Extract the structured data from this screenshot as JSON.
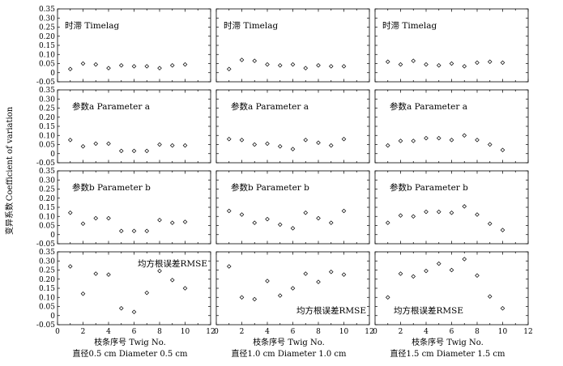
{
  "y_axis_label_cn": "变异系数",
  "y_axis_label_en": "Coefficient of variation",
  "chart_data": {
    "type": "scatter",
    "marker": "diamond",
    "xlim": [
      0,
      12
    ],
    "ylim": [
      -0.05,
      0.35
    ],
    "xticks": [
      "0",
      "2",
      "4",
      "6",
      "8",
      "10",
      "12"
    ],
    "yticks": [
      "-0.05",
      "0",
      "0.05",
      "0.10",
      "0.15",
      "0.20",
      "0.25",
      "0.30",
      "0.35"
    ],
    "rows": [
      {
        "title": "时滞 Timelag",
        "title_pos": [
          "top-left",
          "top-left",
          "top-left"
        ]
      },
      {
        "title": "参数a Parameter a",
        "title_pos": [
          "upper-left",
          "upper-left",
          "upper-left"
        ]
      },
      {
        "title": "参数b Parameter b",
        "title_pos": [
          "upper-left",
          "upper-left",
          "upper-left"
        ]
      },
      {
        "title": "均方根误差RMSE",
        "title_pos": [
          "top-right",
          "bottom-right",
          "bottom-left"
        ]
      }
    ],
    "columns": [
      {
        "xlabel": "枝条序号  Twig No.",
        "sublabel": "直径0.5 cm  Diameter 0.5 cm",
        "series": [
          {
            "x": [
              1,
              2,
              3,
              4,
              5,
              6,
              7,
              8,
              9,
              10
            ],
            "y": [
              0.02,
              0.05,
              0.045,
              0.025,
              0.04,
              0.035,
              0.035,
              0.025,
              0.04,
              0.045
            ]
          },
          {
            "x": [
              1,
              2,
              3,
              4,
              5,
              6,
              7,
              8,
              9,
              10
            ],
            "y": [
              0.075,
              0.04,
              0.055,
              0.055,
              0.015,
              0.015,
              0.015,
              0.05,
              0.045,
              0.045
            ]
          },
          {
            "x": [
              1,
              2,
              3,
              4,
              5,
              6,
              7,
              8,
              9,
              10
            ],
            "y": [
              0.12,
              0.06,
              0.09,
              0.09,
              0.02,
              0.02,
              0.02,
              0.08,
              0.065,
              0.07
            ]
          },
          {
            "x": [
              1,
              2,
              3,
              4,
              5,
              6,
              7,
              8,
              9,
              10
            ],
            "y": [
              0.27,
              0.12,
              0.23,
              0.225,
              0.04,
              0.02,
              0.125,
              0.245,
              0.195,
              0.15
            ]
          }
        ]
      },
      {
        "xlabel": "枝条序号  Twig No.",
        "sublabel": "直径1.0 cm  Diameter 1.0 cm",
        "series": [
          {
            "x": [
              1,
              2,
              3,
              4,
              5,
              6,
              7,
              8,
              9,
              10
            ],
            "y": [
              0.02,
              0.07,
              0.065,
              0.045,
              0.04,
              0.045,
              0.025,
              0.04,
              0.035,
              0.035
            ]
          },
          {
            "x": [
              1,
              2,
              3,
              4,
              5,
              6,
              7,
              8,
              9,
              10
            ],
            "y": [
              0.08,
              0.075,
              0.05,
              0.055,
              0.04,
              0.025,
              0.075,
              0.06,
              0.045,
              0.08
            ]
          },
          {
            "x": [
              1,
              2,
              3,
              4,
              5,
              6,
              7,
              8,
              9,
              10
            ],
            "y": [
              0.13,
              0.11,
              0.065,
              0.085,
              0.055,
              0.035,
              0.12,
              0.09,
              0.065,
              0.13
            ]
          },
          {
            "x": [
              1,
              2,
              3,
              4,
              5,
              6,
              7,
              8,
              9,
              10
            ],
            "y": [
              0.27,
              0.1,
              0.09,
              0.19,
              0.11,
              0.15,
              0.23,
              0.185,
              0.24,
              0.225
            ]
          }
        ]
      },
      {
        "xlabel": "枝条序号  Twig No.",
        "sublabel": "直径1.5 cm  Diameter 1.5 cm",
        "series": [
          {
            "x": [
              1,
              2,
              3,
              4,
              5,
              6,
              7,
              8,
              9,
              10
            ],
            "y": [
              0.06,
              0.045,
              0.065,
              0.045,
              0.04,
              0.05,
              0.035,
              0.055,
              0.06,
              0.055
            ]
          },
          {
            "x": [
              1,
              2,
              3,
              4,
              5,
              6,
              7,
              8,
              9,
              10
            ],
            "y": [
              0.045,
              0.07,
              0.07,
              0.085,
              0.085,
              0.075,
              0.1,
              0.075,
              0.05,
              0.02
            ]
          },
          {
            "x": [
              1,
              2,
              3,
              4,
              5,
              6,
              7,
              8,
              9,
              10
            ],
            "y": [
              0.065,
              0.105,
              0.1,
              0.125,
              0.125,
              0.12,
              0.155,
              0.11,
              0.06,
              0.025
            ]
          },
          {
            "x": [
              1,
              2,
              3,
              4,
              5,
              6,
              7,
              8,
              9,
              10
            ],
            "y": [
              0.1,
              0.23,
              0.215,
              0.245,
              0.285,
              0.25,
              0.31,
              0.22,
              0.105,
              0.04
            ]
          }
        ]
      }
    ]
  }
}
